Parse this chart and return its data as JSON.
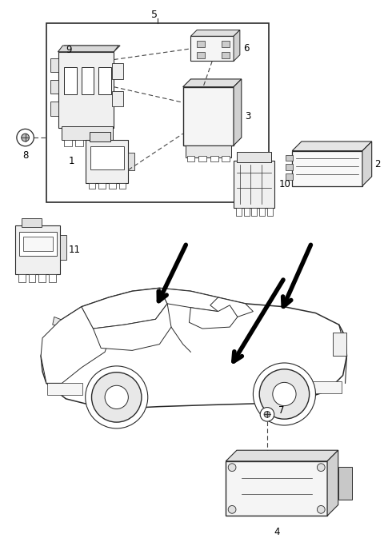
{
  "bg_color": "#ffffff",
  "line_color": "#2a2a2a",
  "dashed_color": "#444444",
  "fig_width": 4.8,
  "fig_height": 6.73,
  "dpi": 100
}
